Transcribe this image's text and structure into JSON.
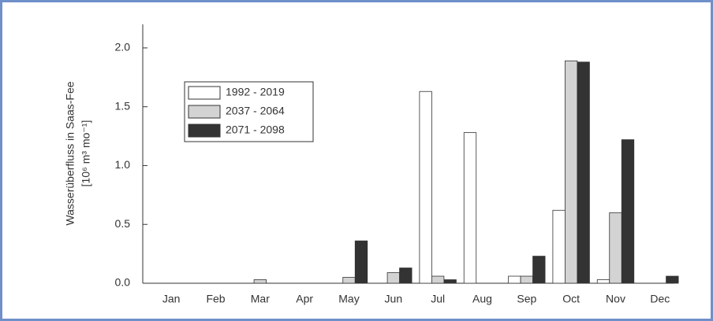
{
  "chart_data": {
    "type": "bar",
    "y_label": [
      "Wasserüberfluss in Saas-Fee",
      "[10⁶ m³ mo⁻¹]"
    ],
    "categories": [
      "Jan",
      "Feb",
      "Mar",
      "Apr",
      "May",
      "Jun",
      "Jul",
      "Aug",
      "Sep",
      "Oct",
      "Nov",
      "Dec"
    ],
    "series": [
      {
        "name": "1992 - 2019",
        "color": "#ffffff",
        "values": [
          0,
          0,
          0,
          0,
          0,
          0,
          1.63,
          1.28,
          0.06,
          0.62,
          0.03,
          0
        ]
      },
      {
        "name": "2037 - 2064",
        "color": "#d3d3d3",
        "values": [
          0,
          0,
          0.03,
          0,
          0.05,
          0.09,
          0.06,
          0,
          0.06,
          1.89,
          0.6,
          0
        ]
      },
      {
        "name": "2071 - 2098",
        "color": "#333333",
        "values": [
          0,
          0,
          0,
          0,
          0.36,
          0.13,
          0.03,
          0,
          0.23,
          1.88,
          1.22,
          0.06
        ]
      }
    ],
    "ylim": [
      0,
      2.2
    ],
    "yticks": [
      {
        "value": 0,
        "label": "0.0"
      },
      0.5,
      {
        "value": 1,
        "label": "1.0"
      },
      1.5,
      {
        "value": 2,
        "label": "2.0"
      }
    ],
    "legend": "upper left"
  }
}
